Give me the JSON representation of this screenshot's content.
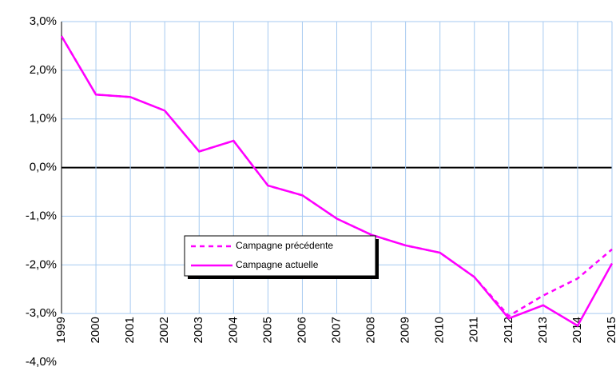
{
  "chart_data": {
    "type": "line",
    "categories": [
      "1999",
      "2000",
      "2001",
      "2002",
      "2003",
      "2004",
      "2005",
      "2006",
      "2007",
      "2008",
      "2009",
      "2010",
      "2011",
      "2012",
      "2013",
      "2014",
      "2015"
    ],
    "series": [
      {
        "name": "Campagne précédente",
        "color": "#ff00ff",
        "dashed": true,
        "values": [
          2.7,
          1.5,
          1.45,
          1.17,
          0.33,
          0.55,
          -0.37,
          -0.57,
          -1.05,
          -1.38,
          -1.6,
          -1.75,
          -2.25,
          -3.05,
          -2.63,
          -2.28,
          -1.68
        ]
      },
      {
        "name": "Campagne actuelle",
        "color": "#ff00ff",
        "dashed": false,
        "values": [
          2.7,
          1.5,
          1.45,
          1.17,
          0.33,
          0.55,
          -0.37,
          -0.57,
          -1.05,
          -1.38,
          -1.6,
          -1.75,
          -2.25,
          -3.1,
          -2.83,
          -3.25,
          -1.97
        ]
      }
    ],
    "ylim": [
      -4,
      3
    ],
    "yticks": [
      {
        "value": -4,
        "label": "-4,0%"
      },
      {
        "value": -3,
        "label": "-3,0%"
      },
      {
        "value": -2,
        "label": "-2,0%"
      },
      {
        "value": -1,
        "label": "-1,0%"
      },
      {
        "value": 0,
        "label": "0,0%"
      },
      {
        "value": 1,
        "label": "1,0%"
      },
      {
        "value": 2,
        "label": "2,0%"
      },
      {
        "value": 3,
        "label": "3,0%"
      }
    ],
    "grid": true
  }
}
